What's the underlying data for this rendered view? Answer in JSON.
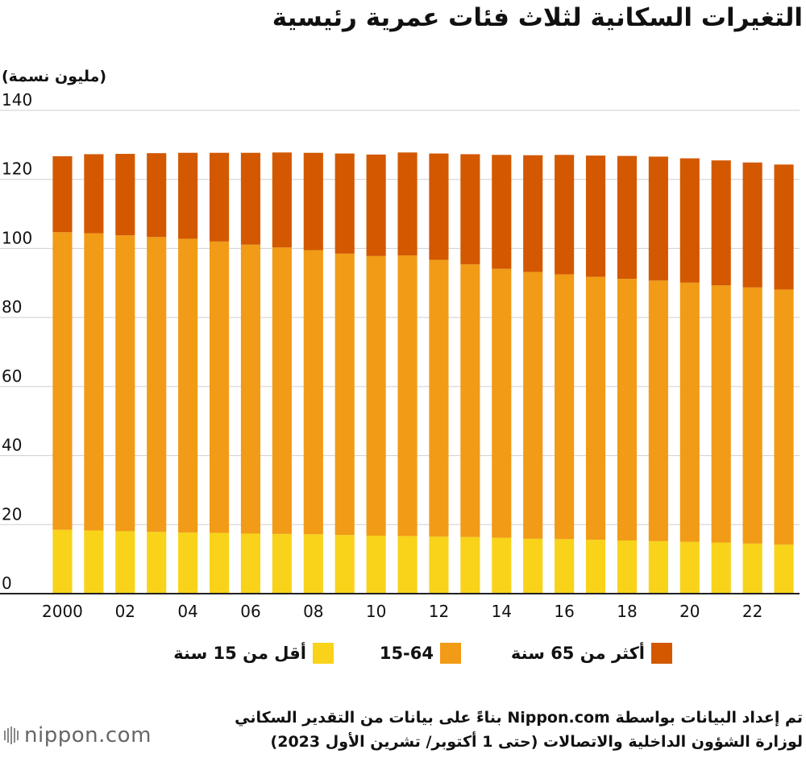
{
  "title": "التغيرات السكانية لثلاث فئات عمرية رئيسية",
  "unit_label": "(مليون نسمة)",
  "legend": {
    "over65": "أكثر من 65 سنة",
    "mid": "15-64",
    "under15": "أقل من 15 سنة"
  },
  "source_line1": "تم إعداد البيانات بواسطة Nippon.com بناءً على بيانات من التقدير السكاني",
  "source_line2": "لوزارة الشؤون الداخلية والاتصالات (حتى 1 أكتوبر/ تشرين الأول 2023)",
  "logo": {
    "text": "nippon",
    "suffix": ".com"
  },
  "colors": {
    "under15": "#f8d319",
    "mid": "#f19b16",
    "over65": "#d35800",
    "grid": "#cfcfcf"
  },
  "chart_data": {
    "type": "bar",
    "stacked": true,
    "categories": [
      "2000",
      "2001",
      "2002",
      "2003",
      "2004",
      "2005",
      "2006",
      "2007",
      "2008",
      "2009",
      "2010",
      "2011",
      "2012",
      "2013",
      "2014",
      "2015",
      "2016",
      "2017",
      "2018",
      "2019",
      "2020",
      "2021",
      "2022",
      "2023"
    ],
    "tick_labels": [
      "2000",
      "",
      "02",
      "",
      "04",
      "",
      "06",
      "",
      "08",
      "",
      "10",
      "",
      "12",
      "",
      "14",
      "",
      "16",
      "",
      "18",
      "",
      "20",
      "",
      "22",
      ""
    ],
    "ylim": [
      0,
      140
    ],
    "yticks": [
      0,
      20,
      40,
      60,
      80,
      100,
      120,
      140
    ],
    "ylabel": "(مليون نسمة)",
    "grid": "horizontal",
    "series": [
      {
        "name": "أقل من 15 سنة",
        "key": "under15",
        "values": [
          18.5,
          18.3,
          18.1,
          17.9,
          17.7,
          17.6,
          17.4,
          17.3,
          17.2,
          17.0,
          16.8,
          16.7,
          16.5,
          16.4,
          16.2,
          15.9,
          15.8,
          15.6,
          15.4,
          15.2,
          15.0,
          14.8,
          14.5,
          14.2
        ]
      },
      {
        "name": "15-64",
        "key": "mid",
        "values": [
          86.2,
          86.1,
          85.7,
          85.4,
          85.1,
          84.4,
          83.7,
          83.0,
          82.3,
          81.5,
          81.0,
          81.3,
          80.2,
          79.0,
          77.9,
          77.3,
          76.7,
          76.2,
          75.8,
          75.5,
          75.1,
          74.5,
          74.2,
          73.9
        ]
      },
      {
        "name": "أكثر من 65 سنة",
        "key": "over65",
        "values": [
          22.0,
          22.9,
          23.6,
          24.3,
          24.9,
          25.7,
          26.6,
          27.5,
          28.2,
          29.0,
          29.4,
          29.8,
          30.8,
          31.9,
          33.0,
          33.8,
          34.6,
          35.1,
          35.6,
          35.9,
          36.0,
          36.2,
          36.2,
          36.2
        ]
      }
    ]
  }
}
